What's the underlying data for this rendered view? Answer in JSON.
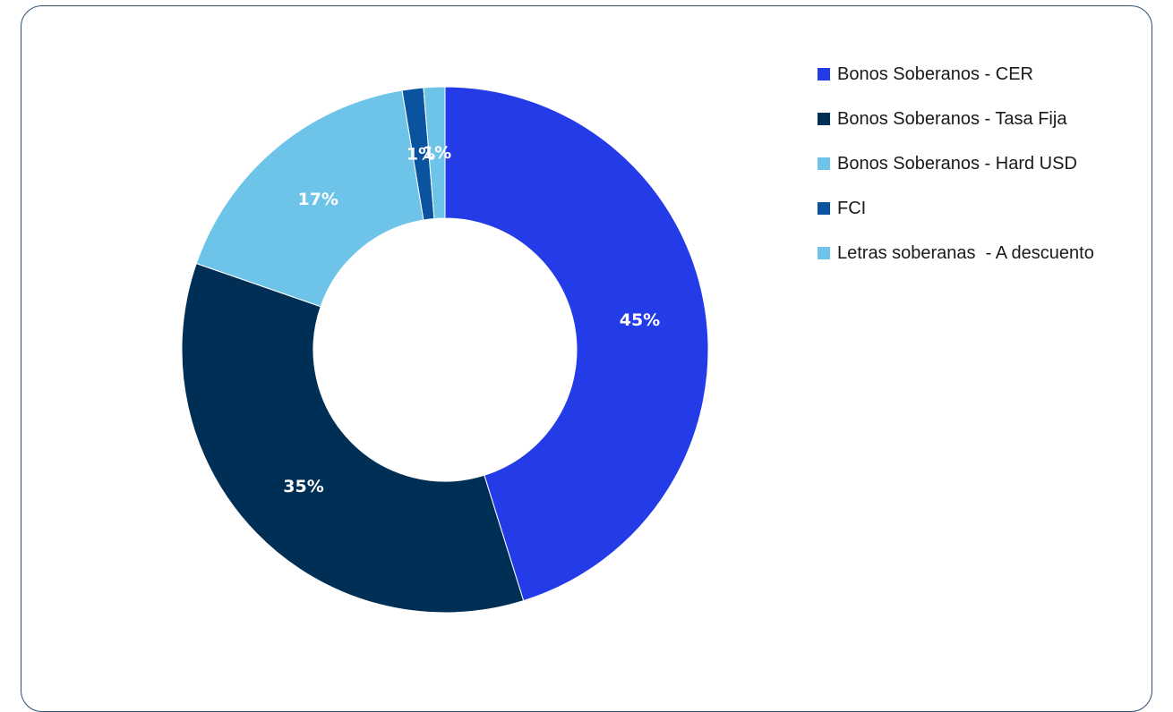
{
  "chart_data": {
    "type": "pie",
    "donut": true,
    "legend_position": "right",
    "slices": [
      {
        "name": "Bonos Soberanos - CER",
        "value": 45,
        "label": "45%",
        "color": "#233ce8"
      },
      {
        "name": "Bonos Soberanos - Tasa Fija",
        "value": 35,
        "label": "35%",
        "color": "#002f56"
      },
      {
        "name": "Bonos Soberanos - Hard USD",
        "value": 17,
        "label": "17%",
        "color": "#6dc3e8"
      },
      {
        "name": "FCI",
        "value": 1.3,
        "label": "1%",
        "color": "#0a539e"
      },
      {
        "name": "Letras soberanas  - A descuento",
        "value": 1.3,
        "label": "1%",
        "color": "#6dc3e8"
      }
    ]
  }
}
